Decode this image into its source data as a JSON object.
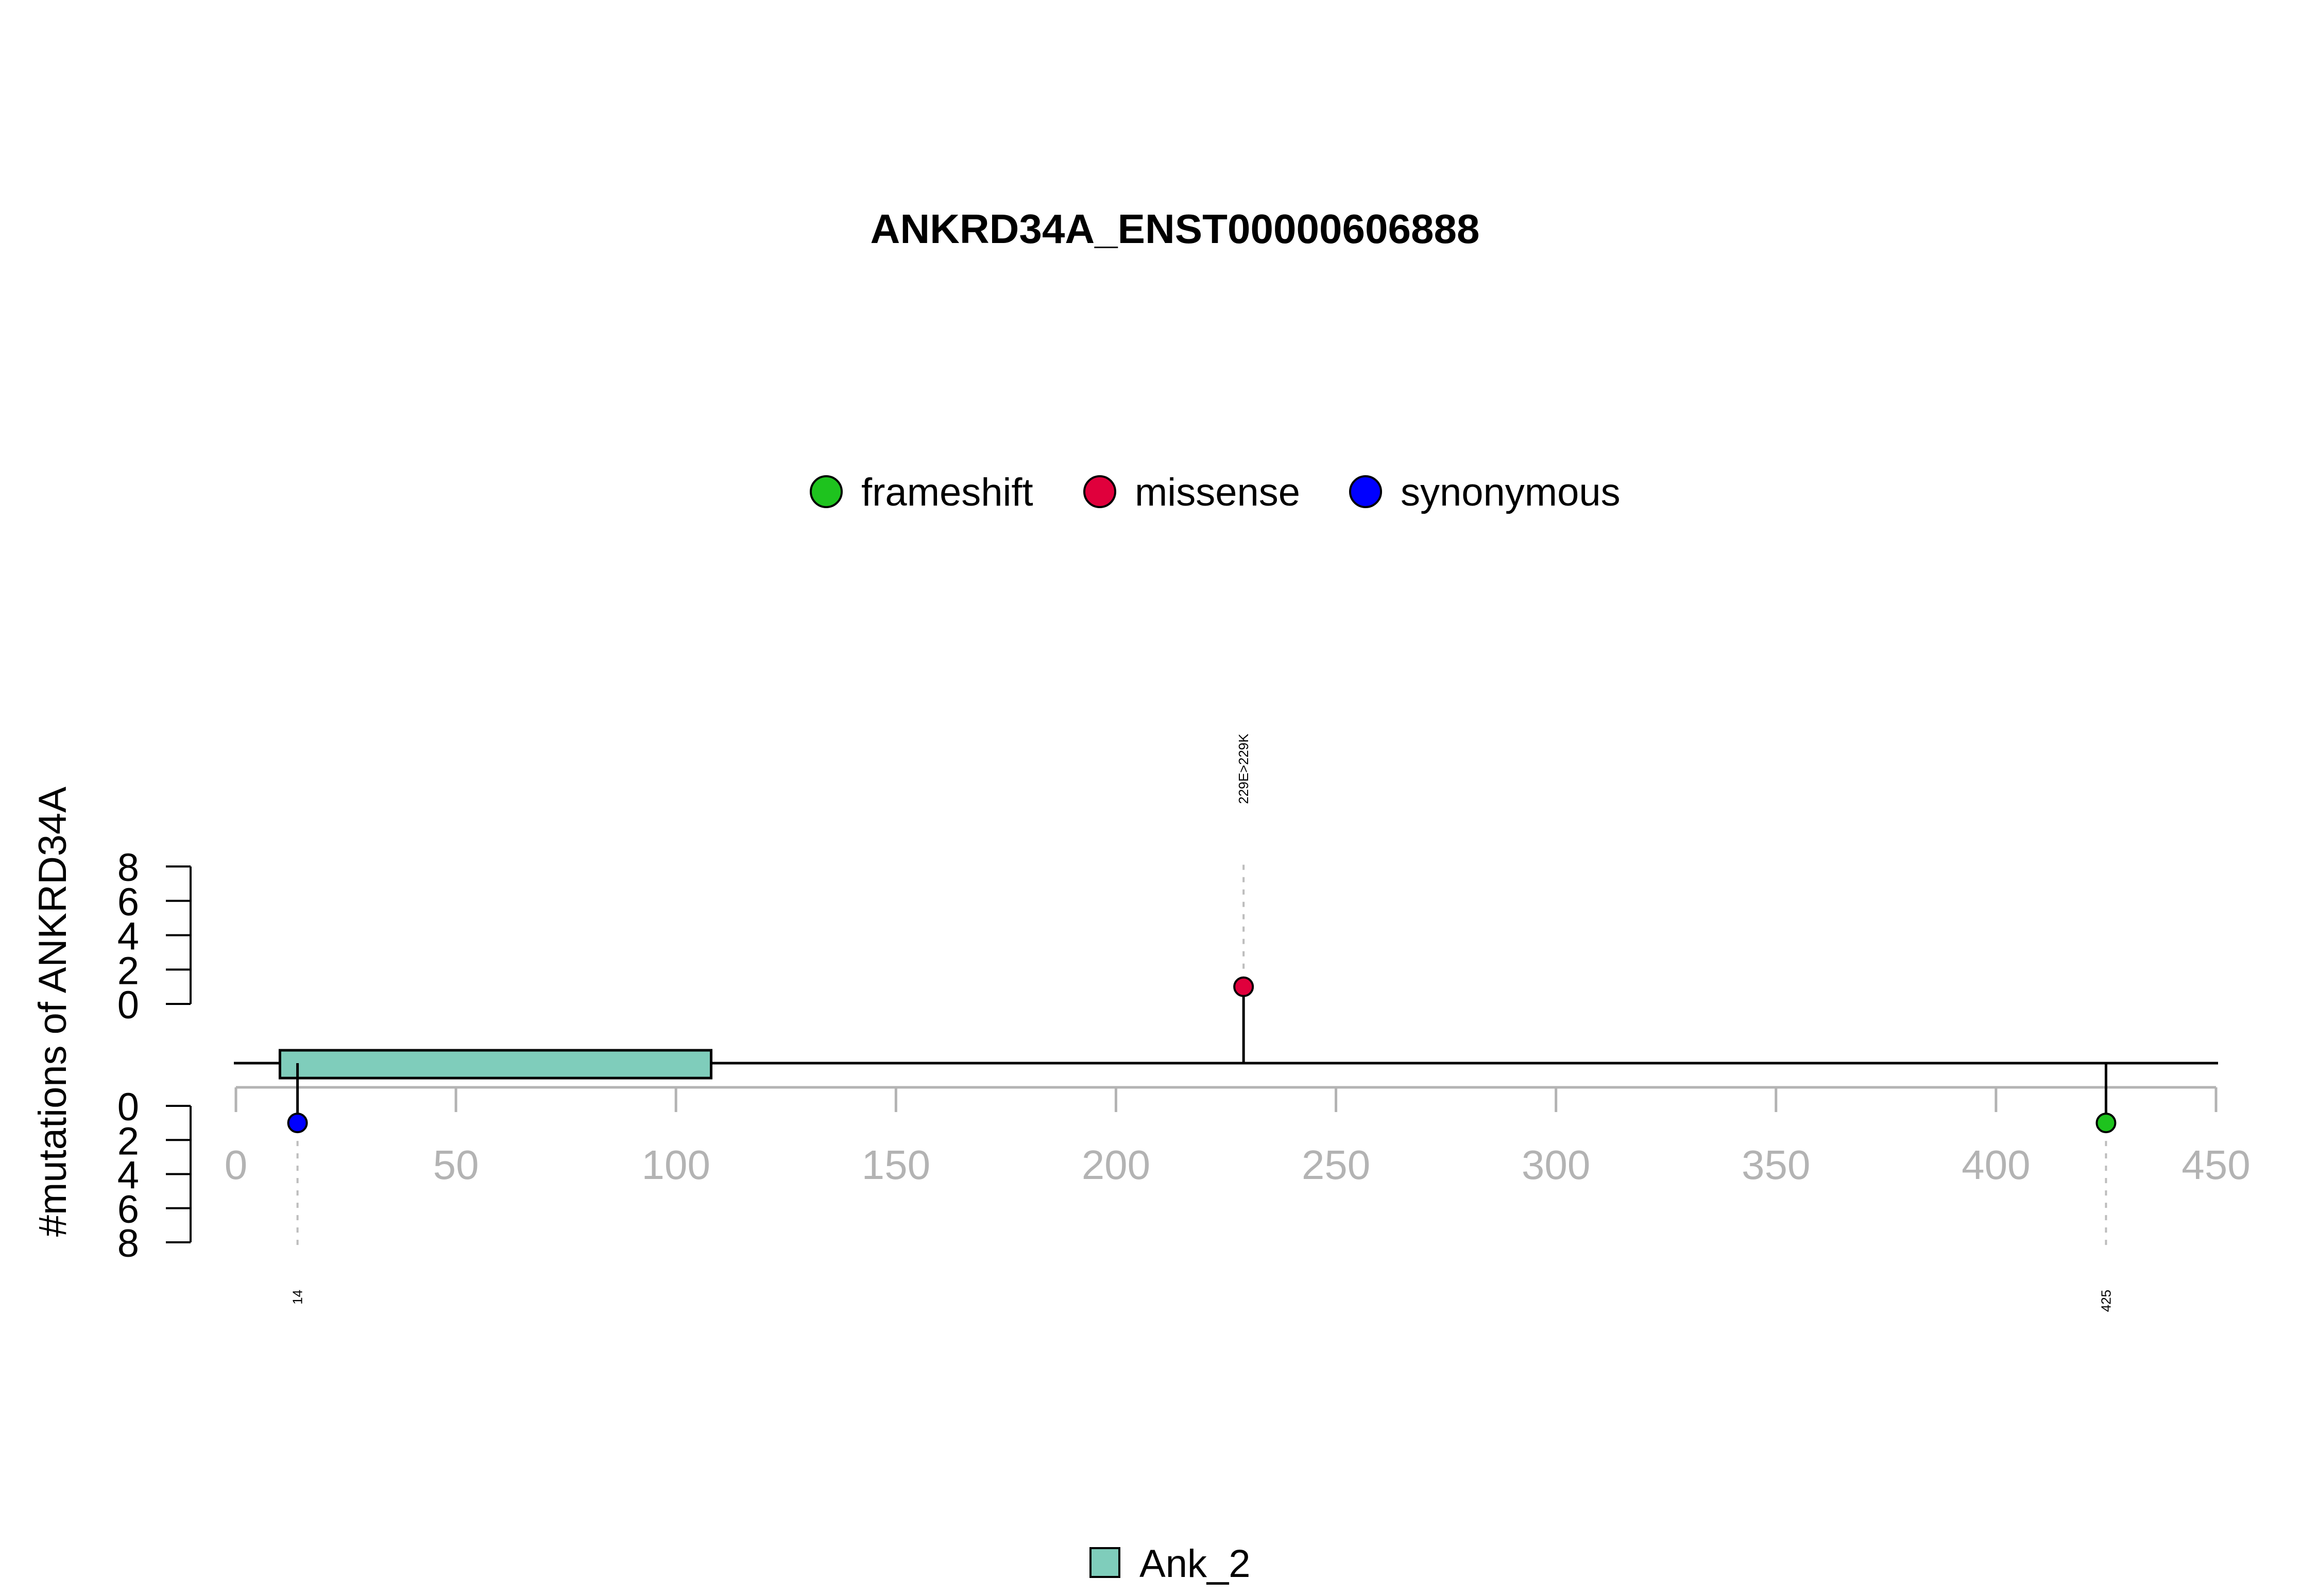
{
  "chart_data": {
    "type": "lollipop",
    "title": "ANKRD34A_ENST00000606888",
    "ylabel": "#mutations of ANKRD34A",
    "xlim": [
      0,
      450
    ],
    "x_ticks": [
      0,
      50,
      100,
      150,
      200,
      250,
      300,
      350,
      400,
      450
    ],
    "y_ticks_top": [
      0,
      2,
      4,
      6,
      8
    ],
    "y_ticks_bottom": [
      0,
      2,
      4,
      6,
      8
    ],
    "ylim": [
      0,
      8
    ],
    "legend": {
      "placement": "top-center",
      "entries": [
        {
          "name": "frameshift",
          "color": "#1ec31e"
        },
        {
          "name": "missense",
          "color": "#e0003c"
        },
        {
          "name": "synonymous",
          "color": "#0000ff"
        }
      ]
    },
    "mutations": [
      {
        "position": 14,
        "label": "14",
        "type": "synonymous",
        "count": 1,
        "strand": "bottom"
      },
      {
        "position": 229,
        "label": "229E>229K",
        "type": "missense",
        "count": 1,
        "strand": "top"
      },
      {
        "position": 425,
        "label": "425",
        "type": "frameshift",
        "count": 1,
        "strand": "bottom"
      }
    ],
    "domains": [
      {
        "name": "Ank_2",
        "start": 10,
        "end": 108,
        "color": "#7fcdbb"
      }
    ],
    "domain_legend": {
      "placement": "bottom-center",
      "entries": [
        {
          "name": "Ank_2",
          "color": "#7fcdbb"
        }
      ]
    }
  }
}
